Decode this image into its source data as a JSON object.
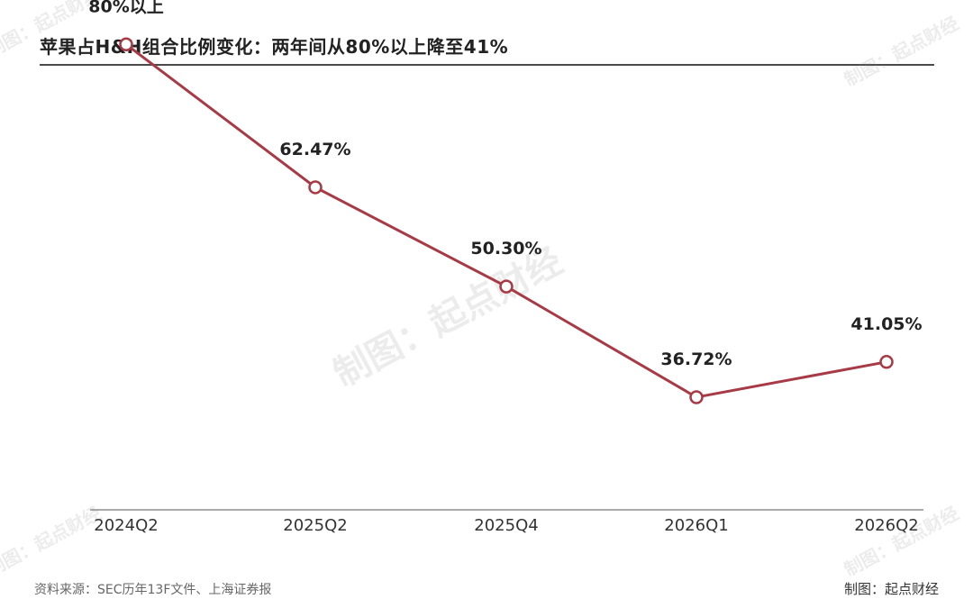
{
  "title": "苹果占H&H组合比例变化：两年间从80%以上降至41%",
  "footer": {
    "source": "资料来源：SEC历年13F文件、上海证券报",
    "credit": "制图：起点财经"
  },
  "watermark_text": "制图：起点财经",
  "colors": {
    "line": "#a83a45",
    "axis": "#555555",
    "text": "#222222"
  },
  "chart_data": {
    "type": "line",
    "title": "苹果占H&H组合比例变化：两年间从80%以上降至41%",
    "categories": [
      "2024Q2",
      "2025Q2",
      "2025Q4",
      "2026Q1",
      "2026Q2"
    ],
    "series": [
      {
        "values": [
          80,
          62.47,
          50.3,
          36.72,
          41.05
        ]
      }
    ],
    "data_labels": [
      "80%以上",
      "62.47%",
      "50.30%",
      "36.72%",
      "41.05%"
    ],
    "xlabel": "",
    "ylabel": "",
    "y_axis_shown": false,
    "grid": false
  }
}
